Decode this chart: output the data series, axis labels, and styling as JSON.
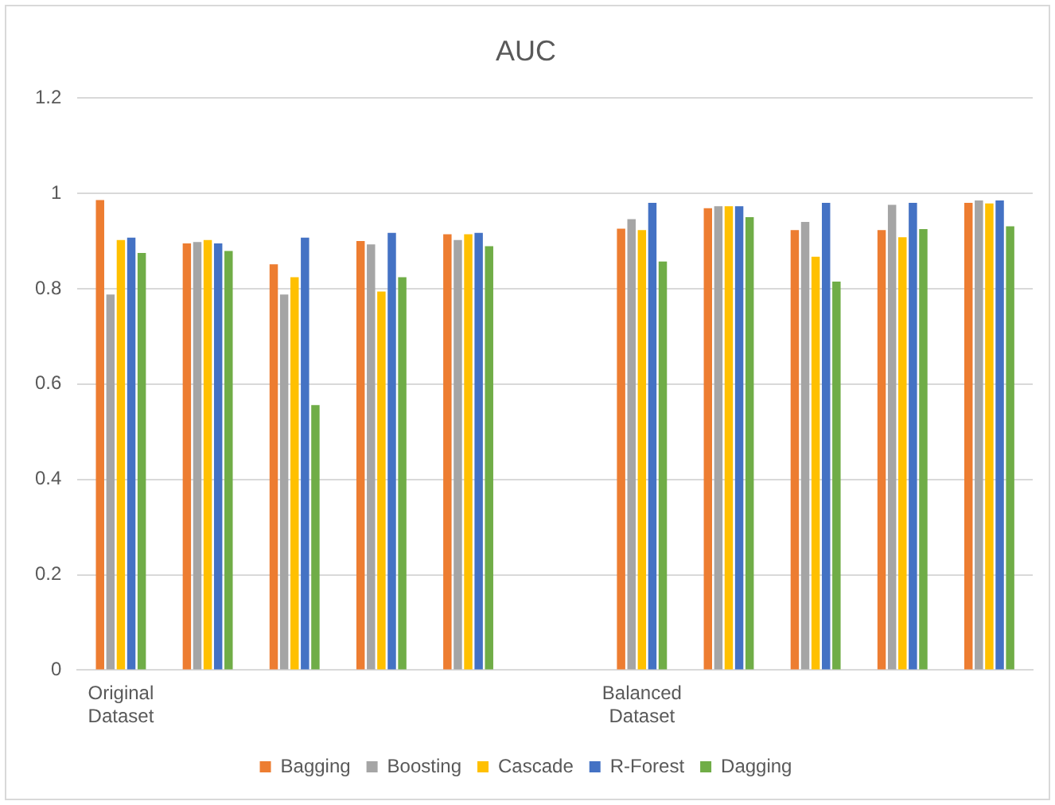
{
  "chart_data": {
    "type": "bar",
    "title": "AUC",
    "categories": [
      "Original Dataset",
      null,
      null,
      null,
      null,
      null,
      "Balanced Dataset",
      null,
      null,
      null,
      null
    ],
    "series": [
      {
        "name": "Bagging",
        "color": "#ed7d31",
        "values": [
          0.986,
          0.895,
          0.851,
          0.9,
          0.914,
          null,
          0.926,
          0.969,
          0.923,
          0.923,
          0.98
        ]
      },
      {
        "name": "Boosting",
        "color": "#a5a5a5",
        "values": [
          0.788,
          0.898,
          0.788,
          0.893,
          0.902,
          null,
          0.946,
          0.973,
          0.94,
          0.976,
          0.985
        ]
      },
      {
        "name": "Cascade",
        "color": "#ffc000",
        "values": [
          0.902,
          0.902,
          0.824,
          0.794,
          0.914,
          null,
          0.923,
          0.973,
          0.867,
          0.908,
          0.979
        ]
      },
      {
        "name": "R-Forest",
        "color": "#4472c4",
        "values": [
          0.907,
          0.895,
          0.907,
          0.917,
          0.917,
          null,
          0.98,
          0.973,
          0.98,
          0.98,
          0.985
        ]
      },
      {
        "name": "Dagging",
        "color": "#70ad47",
        "values": [
          0.875,
          0.879,
          0.556,
          0.824,
          0.889,
          null,
          0.857,
          0.95,
          0.815,
          0.925,
          0.931
        ]
      }
    ],
    "ylim": [
      0,
      1.2
    ],
    "yticks": [
      0,
      0.2,
      0.4,
      0.6,
      0.8,
      1,
      1.2
    ],
    "grid": "y",
    "legend": "bottom"
  }
}
